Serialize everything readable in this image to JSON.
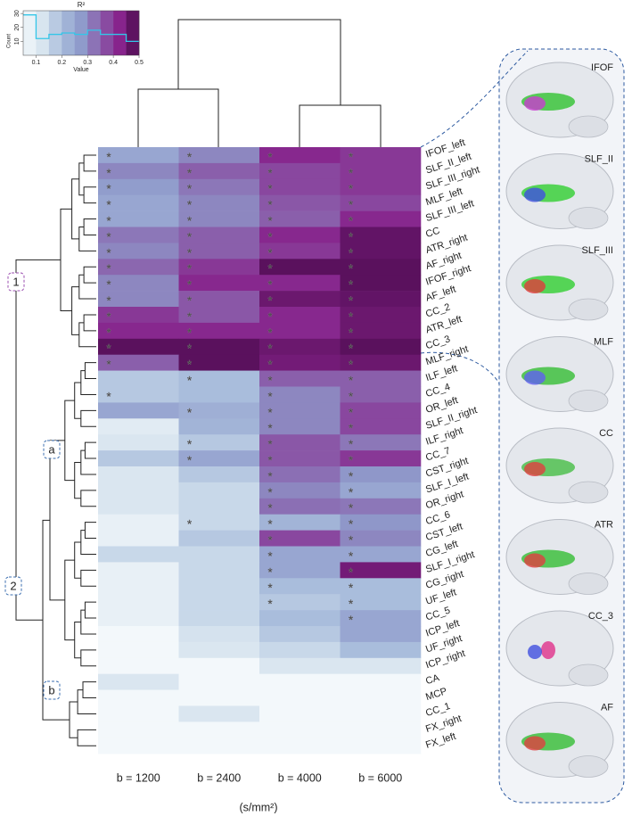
{
  "chart_data": {
    "type": "heatmap",
    "columns": [
      "b = 1200",
      "b = 2400",
      "b = 4000",
      "b = 6000"
    ],
    "rows": [
      "IFOF_left",
      "SLF_II_left",
      "SLF_III_right",
      "MLF_left",
      "SLF_III_left",
      "CC",
      "ATR_right",
      "AF_right",
      "IFOF_right",
      "AF_left",
      "CC_2",
      "ATR_left",
      "CC_3",
      "MLF_right",
      "ILF_left",
      "CC_4",
      "OR_left",
      "SLF_II_right",
      "ILF_right",
      "CC_7",
      "CST_right",
      "SLF_I_left",
      "OR_right",
      "CC_6",
      "CST_left",
      "CG_left",
      "SLF_I_right",
      "CG_right",
      "UF_left",
      "CC_5",
      "ICP_left",
      "UF_right",
      "ICP_right",
      "CA",
      "MCP",
      "CC_1",
      "FX_right",
      "FX_left"
    ],
    "values": [
      [
        0.25,
        0.3,
        0.42,
        0.4
      ],
      [
        0.3,
        0.35,
        0.38,
        0.4
      ],
      [
        0.27,
        0.32,
        0.38,
        0.4
      ],
      [
        0.25,
        0.3,
        0.36,
        0.38
      ],
      [
        0.25,
        0.3,
        0.35,
        0.42
      ],
      [
        0.32,
        0.35,
        0.42,
        0.47
      ],
      [
        0.3,
        0.35,
        0.4,
        0.47
      ],
      [
        0.34,
        0.4,
        0.48,
        0.48
      ],
      [
        0.3,
        0.42,
        0.42,
        0.48
      ],
      [
        0.3,
        0.36,
        0.46,
        0.47
      ],
      [
        0.4,
        0.36,
        0.42,
        0.46
      ],
      [
        0.42,
        0.42,
        0.42,
        0.46
      ],
      [
        0.48,
        0.48,
        0.46,
        0.48
      ],
      [
        0.35,
        0.48,
        0.45,
        0.46
      ],
      [
        0.18,
        0.2,
        0.35,
        0.35
      ],
      [
        0.18,
        0.2,
        0.3,
        0.35
      ],
      [
        0.25,
        0.23,
        0.3,
        0.38
      ],
      [
        0.1,
        0.22,
        0.3,
        0.38
      ],
      [
        0.12,
        0.18,
        0.36,
        0.32
      ],
      [
        0.18,
        0.25,
        0.36,
        0.4
      ],
      [
        0.12,
        0.18,
        0.33,
        0.28
      ],
      [
        0.12,
        0.15,
        0.3,
        0.25
      ],
      [
        0.12,
        0.15,
        0.33,
        0.32
      ],
      [
        0.08,
        0.15,
        0.22,
        0.28
      ],
      [
        0.08,
        0.18,
        0.38,
        0.3
      ],
      [
        0.15,
        0.15,
        0.25,
        0.25
      ],
      [
        0.08,
        0.15,
        0.25,
        0.45
      ],
      [
        0.08,
        0.15,
        0.2,
        0.2
      ],
      [
        0.08,
        0.15,
        0.18,
        0.2
      ],
      [
        0.08,
        0.15,
        0.2,
        0.25
      ],
      [
        0.05,
        0.13,
        0.18,
        0.25
      ],
      [
        0.05,
        0.12,
        0.15,
        0.2
      ],
      [
        0.05,
        0.05,
        0.12,
        0.12
      ],
      [
        0.12,
        0.05,
        0.05,
        0.05
      ],
      [
        0.04,
        0.04,
        0.04,
        0.05
      ],
      [
        0.04,
        0.12,
        0.04,
        0.04
      ],
      [
        0.04,
        0.04,
        0.04,
        0.04
      ],
      [
        0.04,
        0.04,
        0.04,
        0.04
      ]
    ],
    "significant": [
      [
        true,
        true,
        true,
        true
      ],
      [
        true,
        true,
        true,
        true
      ],
      [
        true,
        true,
        true,
        true
      ],
      [
        true,
        true,
        true,
        true
      ],
      [
        true,
        true,
        true,
        true
      ],
      [
        true,
        true,
        true,
        true
      ],
      [
        true,
        true,
        true,
        true
      ],
      [
        true,
        true,
        true,
        true
      ],
      [
        true,
        true,
        true,
        true
      ],
      [
        true,
        true,
        true,
        true
      ],
      [
        true,
        true,
        true,
        true
      ],
      [
        true,
        true,
        true,
        true
      ],
      [
        true,
        true,
        true,
        true
      ],
      [
        true,
        true,
        true,
        true
      ],
      [
        false,
        true,
        true,
        true
      ],
      [
        true,
        false,
        true,
        true
      ],
      [
        false,
        true,
        true,
        true
      ],
      [
        false,
        false,
        true,
        true
      ],
      [
        false,
        true,
        true,
        true
      ],
      [
        false,
        true,
        true,
        true
      ],
      [
        false,
        false,
        true,
        true
      ],
      [
        false,
        false,
        true,
        true
      ],
      [
        false,
        false,
        true,
        true
      ],
      [
        false,
        true,
        true,
        true
      ],
      [
        false,
        false,
        true,
        true
      ],
      [
        false,
        false,
        true,
        true
      ],
      [
        false,
        false,
        true,
        true
      ],
      [
        false,
        false,
        true,
        true
      ],
      [
        false,
        false,
        true,
        true
      ],
      [
        false,
        false,
        false,
        true
      ],
      [
        false,
        false,
        false,
        false
      ],
      [
        false,
        false,
        false,
        false
      ],
      [
        false,
        false,
        false,
        false
      ],
      [
        false,
        false,
        false,
        false
      ],
      [
        false,
        false,
        false,
        false
      ],
      [
        false,
        false,
        false,
        false
      ],
      [
        false,
        false,
        false,
        false
      ],
      [
        false,
        false,
        false,
        false
      ]
    ],
    "marker": "*",
    "xlabel": "(s/mm²)",
    "colors": [
      "#f3f8fb",
      "#d8e5ef",
      "#a9bddc",
      "#8f9bcb",
      "#8a5fab",
      "#87248c",
      "#4a0a4c"
    ],
    "cluster_labels": [
      {
        "text": "1",
        "color": "#9b4fb0"
      },
      {
        "text": "a",
        "color": "#3d6fb0"
      },
      {
        "text": "2",
        "color": "#3d6fb0"
      },
      {
        "text": "b",
        "color": "#3d6fb0"
      }
    ],
    "colorbar": {
      "title": "R²",
      "xlabel": "Value",
      "ylabel": "Count",
      "xlim": [
        0.05,
        0.5
      ],
      "xticks": [
        0.1,
        0.2,
        0.3,
        0.4,
        0.5
      ],
      "ylim": [
        0,
        32
      ],
      "yticks": [
        10,
        20,
        30
      ],
      "line_color": "#33c6e8",
      "bins": [
        0.05,
        0.1,
        0.15,
        0.2,
        0.25,
        0.3,
        0.35,
        0.4,
        0.45,
        0.5
      ],
      "counts": [
        29,
        12,
        15,
        16,
        15,
        18,
        15,
        15,
        10
      ]
    }
  },
  "tract_panel": {
    "labels": [
      "IFOF",
      "SLF_II",
      "SLF_III",
      "MLF",
      "CC",
      "ATR",
      "CC_3",
      "AF"
    ]
  }
}
